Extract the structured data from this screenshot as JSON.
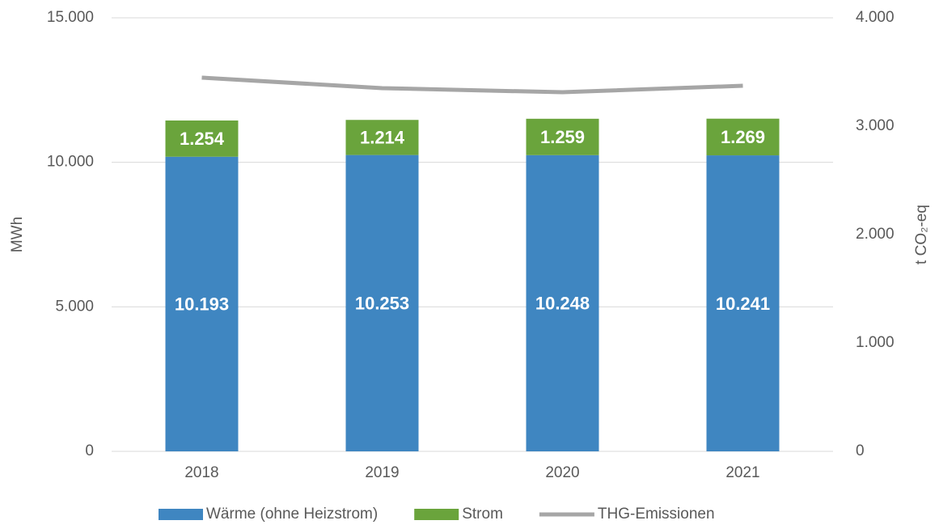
{
  "chart_data": {
    "type": "bar",
    "categories": [
      "2018",
      "2019",
      "2020",
      "2021"
    ],
    "series": [
      {
        "name": "Wärme (ohne Heizstrom)",
        "color": "#3f86c1",
        "values": [
          10193,
          10253,
          10248,
          10241
        ],
        "value_labels": [
          "10.193",
          "10.253",
          "10.248",
          "10.241"
        ]
      },
      {
        "name": "Strom",
        "color": "#6aa43c",
        "values": [
          1254,
          1214,
          1259,
          1269
        ],
        "value_labels": [
          "1.254",
          "1.214",
          "1.259",
          "1.269"
        ]
      },
      {
        "name": "THG-Emissionen",
        "color": "#a6a6a6",
        "type": "line",
        "axis": "y2",
        "values": [
          3448,
          3351,
          3313,
          3373
        ]
      }
    ],
    "stacked": true,
    "ylabel": "MWh",
    "y2label": "t CO₂-eq",
    "ylim": [
      0,
      15000
    ],
    "yticks": [
      0,
      {
        "value": 5000,
        "label": "5.000"
      },
      {
        "value": 10000,
        "label": "10.000"
      },
      {
        "value": 15000,
        "label": "15.000"
      }
    ],
    "y2lim": [
      0,
      4000
    ],
    "y2ticks": [
      0,
      {
        "value": 1000,
        "label": "1.000"
      },
      {
        "value": 2000,
        "label": "2.000"
      },
      {
        "value": 3000,
        "label": "3.000"
      },
      {
        "value": 4000,
        "label": "4.000"
      }
    ],
    "grid": true,
    "legend": "bottom"
  }
}
